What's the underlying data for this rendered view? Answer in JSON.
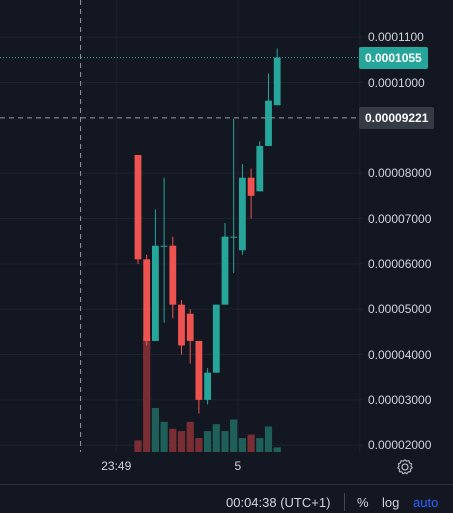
{
  "chart_data": {
    "type": "candlestick",
    "y_tick_labels": [
      "0.0001100",
      "0.0001000",
      "0.00008000",
      "0.00007000",
      "0.00006000",
      "0.00005000",
      "0.00004000",
      "0.00003000",
      "0.00002000"
    ],
    "y_ticks": [
      0.00011,
      0.0001,
      8e-05,
      7e-05,
      6e-05,
      5e-05,
      4e-05,
      3e-05,
      2e-05
    ],
    "ylim": [
      1.85e-05,
      0.0001182
    ],
    "x_tick_labels": [
      {
        "label": "23:49",
        "bar": -2.5
      },
      {
        "label": "5",
        "bar": 11.5
      }
    ],
    "last_price": 0.0001055,
    "last_price_label": "0.0001055",
    "crosshair_price": 9.221e-05,
    "crosshair_price_label": "0.00009221",
    "crosshair_bar": -6.6,
    "colors": {
      "up": "#26a69a",
      "down": "#ef5350",
      "up_volume": "#1f5f5a",
      "down_volume": "#7a2e34",
      "background": "#131722",
      "grid": "#1e222d"
    },
    "candles": [
      {
        "o": 8.4e-05,
        "h": 8.4e-05,
        "l": 6e-05,
        "c": 6.1e-05,
        "v": 0.1
      },
      {
        "o": 6.1e-05,
        "h": 6.2e-05,
        "l": 4.2e-05,
        "c": 4.3e-05,
        "v": 1.0
      },
      {
        "o": 4.3e-05,
        "h": 7.2e-05,
        "l": 4.3e-05,
        "c": 6.4e-05,
        "v": 0.38
      },
      {
        "o": 6.4e-05,
        "h": 7.9e-05,
        "l": 4.7e-05,
        "c": 6.4e-05,
        "v": 0.26
      },
      {
        "o": 6.4e-05,
        "h": 6.6e-05,
        "l": 4.8e-05,
        "c": 5.1e-05,
        "v": 0.2
      },
      {
        "o": 5.1e-05,
        "h": 5.2e-05,
        "l": 4e-05,
        "c": 4.2e-05,
        "v": 0.18
      },
      {
        "o": 4.9e-05,
        "h": 5e-05,
        "l": 3.8e-05,
        "c": 4.3e-05,
        "v": 0.26
      },
      {
        "o": 4.3e-05,
        "h": 4.3e-05,
        "l": 2.7e-05,
        "c": 3e-05,
        "v": 0.12
      },
      {
        "o": 3e-05,
        "h": 3.7e-05,
        "l": 2.9e-05,
        "c": 3.6e-05,
        "v": 0.18
      },
      {
        "o": 3.6e-05,
        "h": 5.1e-05,
        "l": 3.6e-05,
        "c": 5.1e-05,
        "v": 0.24
      },
      {
        "o": 5.1e-05,
        "h": 6.9e-05,
        "l": 5.1e-05,
        "c": 6.6e-05,
        "v": 0.18
      },
      {
        "o": 6.6e-05,
        "h": 9.2e-05,
        "l": 5.8e-05,
        "c": 6.6e-05,
        "v": 0.28
      },
      {
        "o": 6.3e-05,
        "h": 8.2e-05,
        "l": 6.2e-05,
        "c": 7.9e-05,
        "v": 0.12
      },
      {
        "o": 7.9e-05,
        "h": 8.1e-05,
        "l": 7e-05,
        "c": 7.5e-05,
        "v": 0.15
      },
      {
        "o": 7.6e-05,
        "h": 8.7e-05,
        "l": 7.6e-05,
        "c": 8.6e-05,
        "v": 0.12
      },
      {
        "o": 8.6e-05,
        "h": 0.000102,
        "l": 8.6e-05,
        "c": 9.6e-05,
        "v": 0.22
      },
      {
        "o": 9.5e-05,
        "h": 0.0001075,
        "l": 9.5e-05,
        "c": 0.0001055,
        "v": 0.04
      }
    ],
    "grid": true
  },
  "bottom_bar": {
    "clock": "00:04:38 (UTC+1)",
    "percent": "%",
    "log": "log",
    "auto": "auto",
    "auto_color": "#2962ff"
  },
  "icons": {
    "settings": "gear-icon"
  }
}
